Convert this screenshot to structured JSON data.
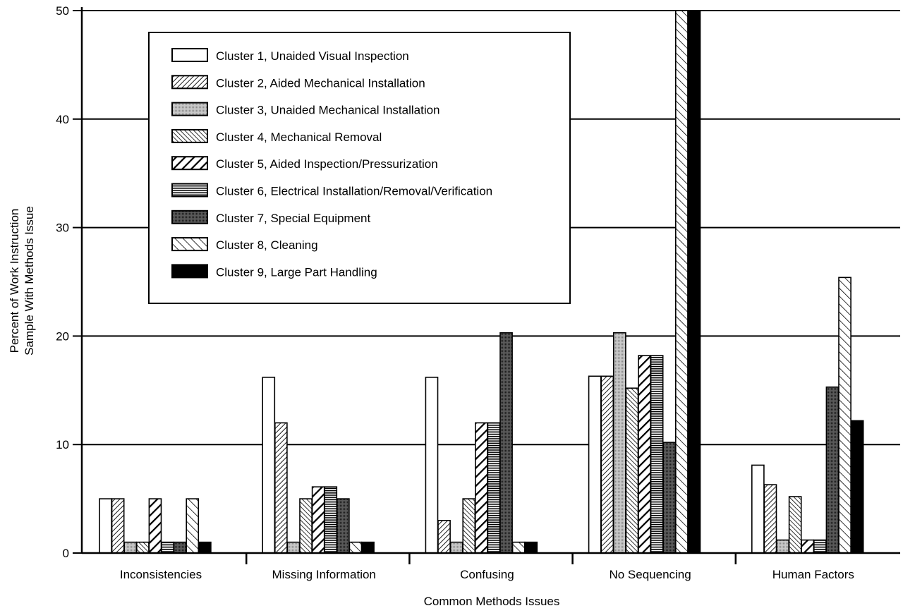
{
  "chart_data": {
    "type": "bar",
    "xlabel": "Common Methods Issues",
    "ylabel_line1": "Percent of Work Instruction",
    "ylabel_line2": "Sample With Methods Issue",
    "ylim": [
      0,
      50
    ],
    "yticks": [
      "0",
      "10",
      "20",
      "30",
      "40",
      "50"
    ],
    "grid": true,
    "legend_position": "top-left",
    "categories": [
      "Inconsistencies",
      "Missing Information",
      "Confusing",
      "No Sequencing",
      "Human Factors"
    ],
    "series": [
      {
        "name": "Cluster 1, Unaided Visual Inspection",
        "pattern": "white",
        "values": [
          5,
          16.2,
          16.2,
          16.3,
          8.1
        ]
      },
      {
        "name": "Cluster 2, Aided Mechanical Installation",
        "pattern": "diag-fine",
        "values": [
          5,
          12,
          3,
          16.3,
          6.3
        ]
      },
      {
        "name": "Cluster 3, Unaided Mechanical Installation",
        "pattern": "dots",
        "values": [
          1,
          1,
          1,
          20.3,
          1.2
        ]
      },
      {
        "name": "Cluster 4, Mechanical Removal",
        "pattern": "back-diag",
        "values": [
          1,
          5,
          5,
          15.2,
          5.2
        ]
      },
      {
        "name": "Cluster 5, Aided Inspection/Pressurization",
        "pattern": "diag-bold",
        "values": [
          5,
          6.1,
          12,
          18.2,
          1.2
        ]
      },
      {
        "name": "Cluster 6, Electrical Installation/Removal/Verification",
        "pattern": "horizontal",
        "values": [
          1,
          6.1,
          12,
          18.2,
          1.2
        ]
      },
      {
        "name": "Cluster 7, Special Equipment",
        "pattern": "dark-dots",
        "values": [
          1,
          5,
          20.3,
          10.2,
          15.3
        ]
      },
      {
        "name": "Cluster 8, Cleaning",
        "pattern": "back-diag-sparse",
        "values": [
          5,
          1,
          1,
          50,
          25.4
        ]
      },
      {
        "name": "Cluster 9, Large Part Handling",
        "pattern": "black",
        "values": [
          1,
          1,
          1,
          50,
          12.2
        ]
      }
    ]
  },
  "colors": {
    "ink": "#000000",
    "paper": "#ffffff",
    "dots": "#9a9a9a",
    "dark_dots": "#4a4a4a"
  }
}
